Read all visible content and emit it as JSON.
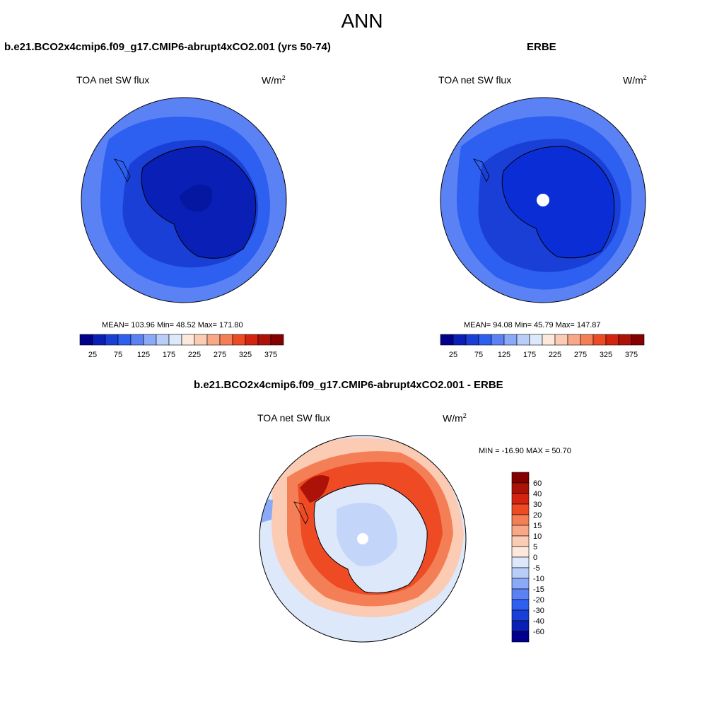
{
  "header": {
    "title": "ANN"
  },
  "panels": {
    "model": {
      "title": "b.e21.BCO2x4cmip6.f09_g17.CMIP6-abrupt4xCO2.001 (yrs 50-74)",
      "variable": "TOA net SW flux",
      "units_base": "W/m",
      "units_exp": "2",
      "stats": "MEAN= 103.96  Min=  48.52  Max= 171.80"
    },
    "obs": {
      "title": "ERBE",
      "variable": "TOA net SW flux",
      "units_base": "W/m",
      "units_exp": "2",
      "stats": "MEAN=  94.08  Min=  45.79  Max= 147.87"
    },
    "diff": {
      "title": "b.e21.BCO2x4cmip6.f09_g17.CMIP6-abrupt4xCO2.001 - ERBE",
      "variable": "TOA net SW flux",
      "units_base": "W/m",
      "units_exp": "2",
      "stats": "MIN = -16.90 MAX =  50.70"
    }
  },
  "colorbars": {
    "abs": {
      "colors": [
        "#00008b",
        "#0a1fb5",
        "#1a3fd6",
        "#2d5ff0",
        "#5b82f5",
        "#8aa9f7",
        "#b9cdf9",
        "#dde8fb",
        "#fde9dc",
        "#fbcbb3",
        "#f8a887",
        "#f47f57",
        "#ee4b25",
        "#d42410",
        "#ad1208",
        "#850000"
      ],
      "labels": [
        "25",
        "75",
        "125",
        "175",
        "225",
        "275",
        "325",
        "375"
      ]
    },
    "diff": {
      "colors": [
        "#850000",
        "#ad1208",
        "#d42410",
        "#ee4b25",
        "#f47f57",
        "#f8a887",
        "#fbcbb3",
        "#fde9dc",
        "#dde8fb",
        "#b9cdf9",
        "#8aa9f7",
        "#5b82f5",
        "#2d5ff0",
        "#1a3fd6",
        "#0a1fb5",
        "#00008b"
      ],
      "labels": [
        "60",
        "40",
        "30",
        "20",
        "15",
        "10",
        "5",
        "0",
        "-5",
        "-10",
        "-15",
        "-20",
        "-30",
        "-40",
        "-60"
      ]
    }
  }
}
